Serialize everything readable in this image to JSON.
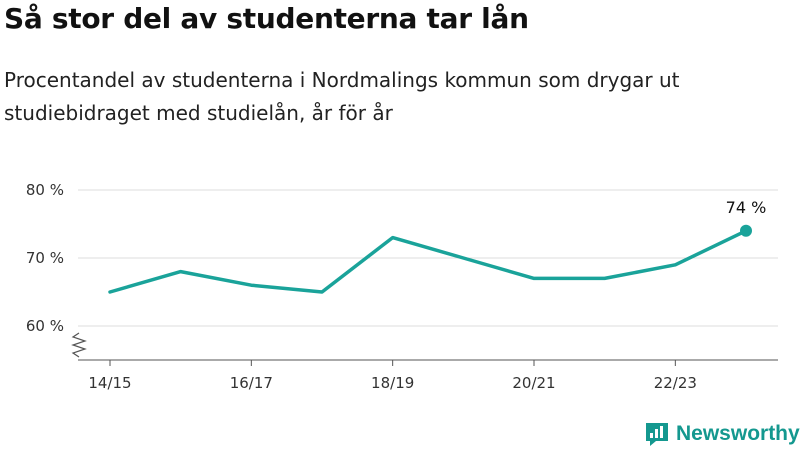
{
  "header": {
    "title": "Så stor del av studenterna tar lån",
    "subtitle": "Procentandel av studenterna i Nordmalings kommun som drygar ut studiebidraget med studielån, år för år"
  },
  "chart_data": {
    "type": "line",
    "title": "Så stor del av studenterna tar lån",
    "subtitle": "Procentandel av studenterna i Nordmalings kommun som drygar ut studiebidraget med studielån, år för år",
    "x_tick_labels": [
      "14/15",
      "16/17",
      "18/19",
      "20/21",
      "22/23"
    ],
    "y_tick_labels": [
      "60 %",
      "70 %",
      "80 %"
    ],
    "y_ticks": [
      60,
      70,
      80
    ],
    "ylim": [
      56,
      82
    ],
    "axis_break": true,
    "grid": true,
    "series": [
      {
        "color": "#1aa39a",
        "points": [
          {
            "x": "14/15",
            "y": 65
          },
          {
            "x": "15/16",
            "y": 68
          },
          {
            "x": "16/17",
            "y": 66
          },
          {
            "x": "17/18",
            "y": 65
          },
          {
            "x": "18/19",
            "y": 73
          },
          {
            "x": "19/20",
            "y": 70
          },
          {
            "x": "20/21",
            "y": 67
          },
          {
            "x": "21/22",
            "y": 67
          },
          {
            "x": "22/23",
            "y": 69
          },
          {
            "x": "23/24",
            "y": 74
          }
        ]
      }
    ],
    "annotation": {
      "label": "74 %",
      "x": "23/24",
      "y": 74
    }
  },
  "brand": {
    "name": "Newsworthy",
    "color": "#14988f",
    "icon": "newsworthy-logo-icon"
  }
}
